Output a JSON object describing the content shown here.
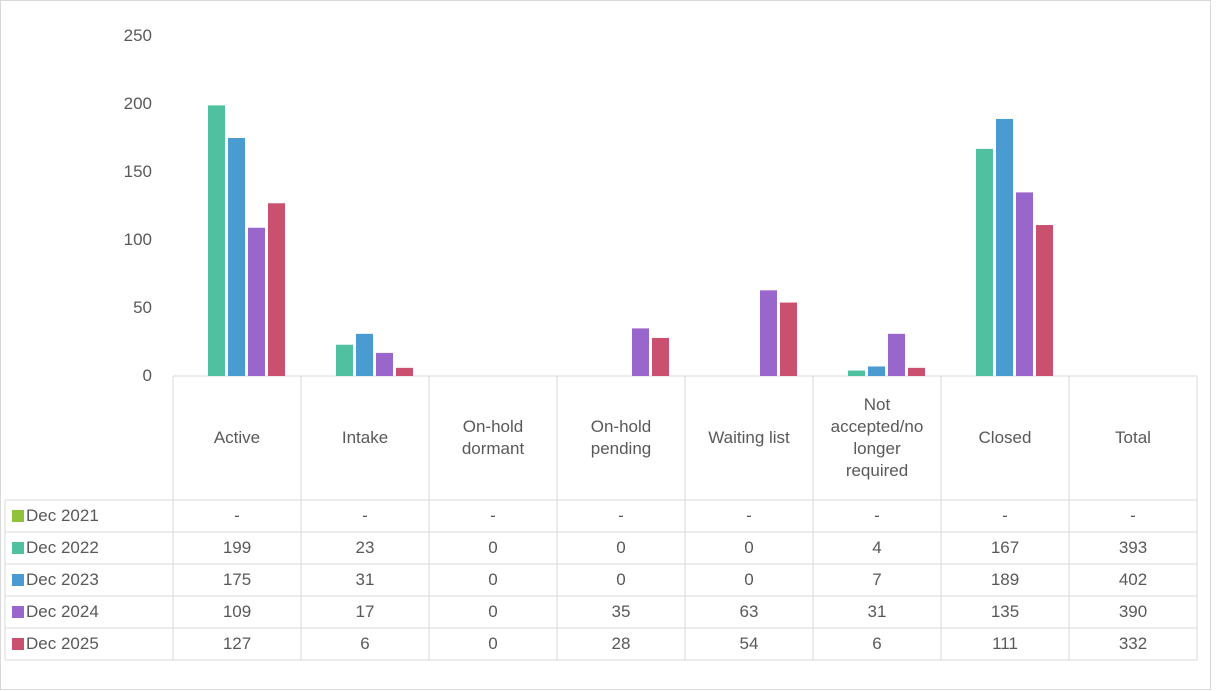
{
  "chart_data": {
    "type": "bar",
    "categories": [
      "Active",
      "Intake",
      "On-hold dormant",
      "On-hold pending",
      "Waiting list",
      "Not accepted/no longer required",
      "Closed"
    ],
    "total_header": "Total",
    "series": [
      {
        "name": "Dec 2021",
        "color": "#92c13c",
        "values": [
          null,
          null,
          null,
          null,
          null,
          null,
          null
        ],
        "value_labels": [
          "-",
          "-",
          "-",
          "-",
          "-",
          "-",
          "-"
        ],
        "total": null,
        "total_label": "-"
      },
      {
        "name": "Dec 2022",
        "color": "#4fc1a0",
        "values": [
          199,
          23,
          0,
          0,
          0,
          4,
          167
        ],
        "total": 393
      },
      {
        "name": "Dec 2023",
        "color": "#4a9bd1",
        "values": [
          175,
          31,
          0,
          0,
          0,
          7,
          189
        ],
        "total": 402
      },
      {
        "name": "Dec 2024",
        "color": "#9966cc",
        "values": [
          109,
          17,
          0,
          35,
          63,
          31,
          135
        ],
        "total": 390
      },
      {
        "name": "Dec 2025",
        "color": "#c9506e",
        "values": [
          127,
          6,
          0,
          28,
          54,
          6,
          111
        ],
        "total": 332
      }
    ],
    "ylim": [
      0,
      250
    ],
    "yticks": [
      0,
      50,
      100,
      150,
      200,
      250
    ],
    "grid": false
  }
}
